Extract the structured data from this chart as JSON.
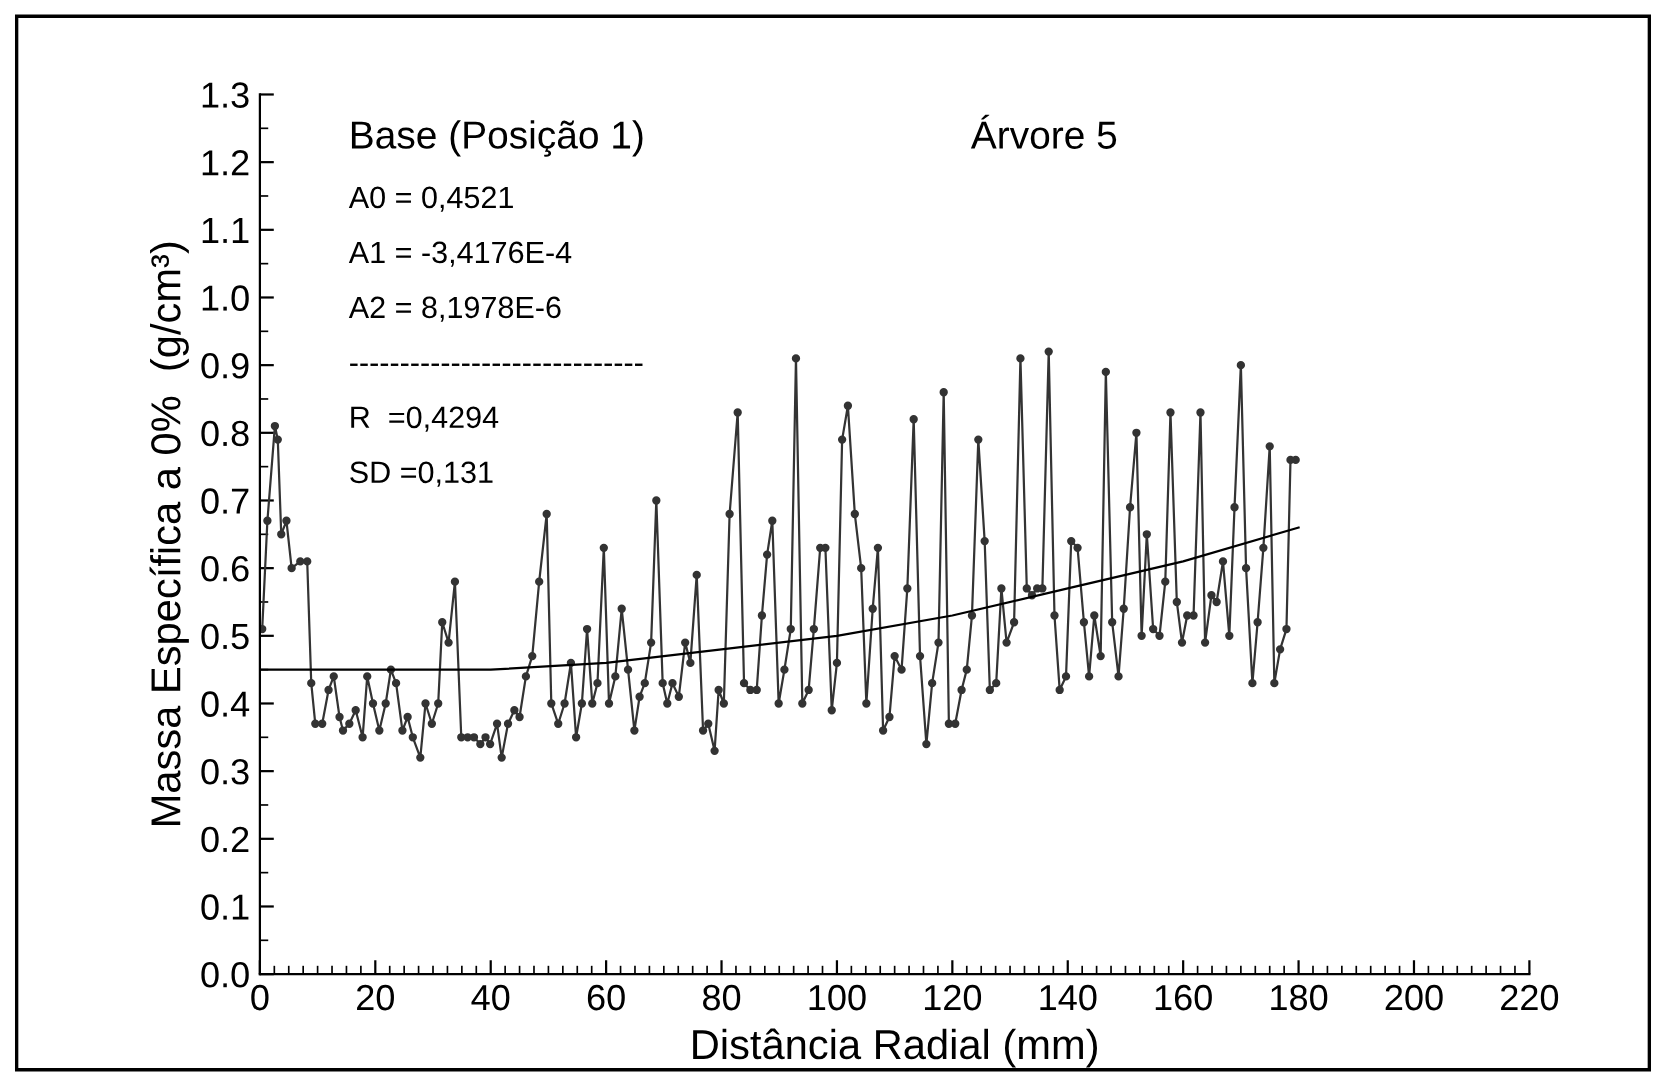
{
  "chart_data": {
    "type": "line",
    "xlabel": "Distância Radial (mm)",
    "ylabel": "Massa Específica a 0%  (g/cm³)",
    "annotations": [
      "Base (Posição 1)",
      "Árvore 5",
      "A0 = 0,4521",
      "A1 = -3,4176E-4",
      "A2 = 8,1978E-6",
      "-----------------------------",
      "R  =0,4294",
      "SD =0,131"
    ],
    "xlim": [
      0,
      220
    ],
    "xticks": [
      0,
      20,
      40,
      60,
      80,
      100,
      120,
      140,
      160,
      180,
      200,
      220
    ],
    "ylim": [
      0,
      1.3
    ],
    "yticks": [
      {
        "value": 0,
        "label": "0.0"
      },
      0.1,
      0.2,
      0.3,
      0.4,
      0.5,
      0.6,
      0.7,
      0.8,
      0.9,
      {
        "value": 1,
        "label": "1.0"
      },
      1.1,
      1.2,
      1.3
    ],
    "grid": false,
    "legend": false,
    "series": [
      {
        "color": "#333333",
        "marker": "circle",
        "line_style": "solid",
        "x": [
          0.4,
          1.3,
          2.6,
          3.1,
          3.7,
          4.6,
          5.5,
          7,
          8.2,
          8.9,
          9.6,
          10.8,
          11.9,
          12.8,
          13.8,
          14.4,
          15.5,
          16.6,
          17.8,
          18.6,
          19.6,
          20.7,
          21.8,
          22.7,
          23.6,
          24.7,
          25.6,
          26.5,
          27.8,
          28.7,
          29.8,
          30.9,
          31.6,
          32.7,
          33.8,
          34.9,
          36,
          37.1,
          38.2,
          39.1,
          39.9,
          41.1,
          41.9,
          43,
          44.1,
          45,
          46.1,
          47.2,
          48.4,
          49.7,
          50.5,
          51.7,
          52.8,
          53.9,
          54.8,
          55.8,
          56.7,
          57.6,
          58.5,
          59.6,
          60.5,
          61.6,
          62.7,
          63.8,
          64.9,
          65.8,
          66.7,
          67.8,
          68.7,
          69.8,
          70.6,
          71.5,
          72.6,
          73.7,
          74.6,
          75.7,
          76.8,
          77.7,
          78.8,
          79.5,
          80.4,
          81.4,
          82.8,
          83.9,
          85,
          86.1,
          87,
          87.9,
          88.8,
          89.9,
          90.9,
          92,
          92.9,
          94,
          95.1,
          96,
          97.1,
          98,
          99.1,
          100,
          100.9,
          101.9,
          103.1,
          104.2,
          105.1,
          106.2,
          107.1,
          108,
          109.1,
          110,
          111.2,
          112.2,
          113.3,
          114.4,
          115.5,
          116.5,
          117.6,
          118.5,
          119.4,
          120.5,
          121.6,
          122.5,
          123.4,
          124.5,
          125.6,
          126.5,
          127.6,
          128.5,
          129.4,
          130.7,
          131.8,
          132.9,
          133.8,
          134.7,
          135.6,
          136.7,
          137.7,
          138.6,
          139.7,
          140.6,
          141.7,
          142.8,
          143.7,
          144.6,
          145.7,
          146.6,
          147.7,
          148.8,
          149.7,
          150.8,
          151.9,
          152.8,
          153.7,
          154.8,
          155.9,
          156.9,
          157.8,
          158.9,
          159.8,
          160.7,
          161.8,
          163,
          163.8,
          164.9,
          165.8,
          166.9,
          168,
          168.9,
          170,
          170.9,
          172,
          172.9,
          173.9,
          175,
          175.8,
          176.8,
          177.9,
          178.6,
          179.5
        ],
        "values": [
          0.51,
          0.67,
          0.81,
          0.79,
          0.65,
          0.67,
          0.6,
          0.61,
          0.61,
          0.43,
          0.37,
          0.37,
          0.42,
          0.44,
          0.38,
          0.36,
          0.37,
          0.39,
          0.35,
          0.44,
          0.4,
          0.36,
          0.4,
          0.45,
          0.43,
          0.36,
          0.38,
          0.35,
          0.32,
          0.4,
          0.37,
          0.4,
          0.52,
          0.49,
          0.58,
          0.35,
          0.35,
          0.35,
          0.34,
          0.35,
          0.34,
          0.37,
          0.32,
          0.37,
          0.39,
          0.38,
          0.44,
          0.47,
          0.58,
          0.68,
          0.4,
          0.37,
          0.4,
          0.46,
          0.35,
          0.4,
          0.51,
          0.4,
          0.43,
          0.63,
          0.4,
          0.44,
          0.54,
          0.45,
          0.36,
          0.41,
          0.43,
          0.49,
          0.7,
          0.43,
          0.4,
          0.43,
          0.41,
          0.49,
          0.46,
          0.59,
          0.36,
          0.37,
          0.33,
          0.42,
          0.4,
          0.68,
          0.83,
          0.43,
          0.42,
          0.42,
          0.53,
          0.62,
          0.67,
          0.4,
          0.45,
          0.51,
          0.91,
          0.4,
          0.42,
          0.51,
          0.63,
          0.63,
          0.39,
          0.46,
          0.79,
          0.84,
          0.68,
          0.6,
          0.4,
          0.54,
          0.63,
          0.36,
          0.38,
          0.47,
          0.45,
          0.57,
          0.82,
          0.47,
          0.34,
          0.43,
          0.49,
          0.86,
          0.37,
          0.37,
          0.42,
          0.45,
          0.53,
          0.79,
          0.64,
          0.42,
          0.43,
          0.57,
          0.49,
          0.52,
          0.91,
          0.57,
          0.56,
          0.57,
          0.57,
          0.92,
          0.53,
          0.42,
          0.44,
          0.64,
          0.63,
          0.52,
          0.44,
          0.53,
          0.47,
          0.89,
          0.52,
          0.44,
          0.54,
          0.69,
          0.8,
          0.5,
          0.65,
          0.51,
          0.5,
          0.58,
          0.83,
          0.55,
          0.49,
          0.53,
          0.53,
          0.83,
          0.49,
          0.56,
          0.55,
          0.61,
          0.5,
          0.69,
          0.9,
          0.6,
          0.43,
          0.52,
          0.63,
          0.78,
          0.43,
          0.48,
          0.51,
          0.76,
          0.76
        ]
      },
      {
        "color": "#000000",
        "marker": "none",
        "line_style": "solid",
        "x": [
          0,
          20,
          40,
          60,
          80,
          100,
          120,
          140,
          160,
          180
        ],
        "values": [
          0.45,
          0.45,
          0.45,
          0.46,
          0.48,
          0.5,
          0.53,
          0.57,
          0.61,
          0.66
        ]
      }
    ]
  }
}
